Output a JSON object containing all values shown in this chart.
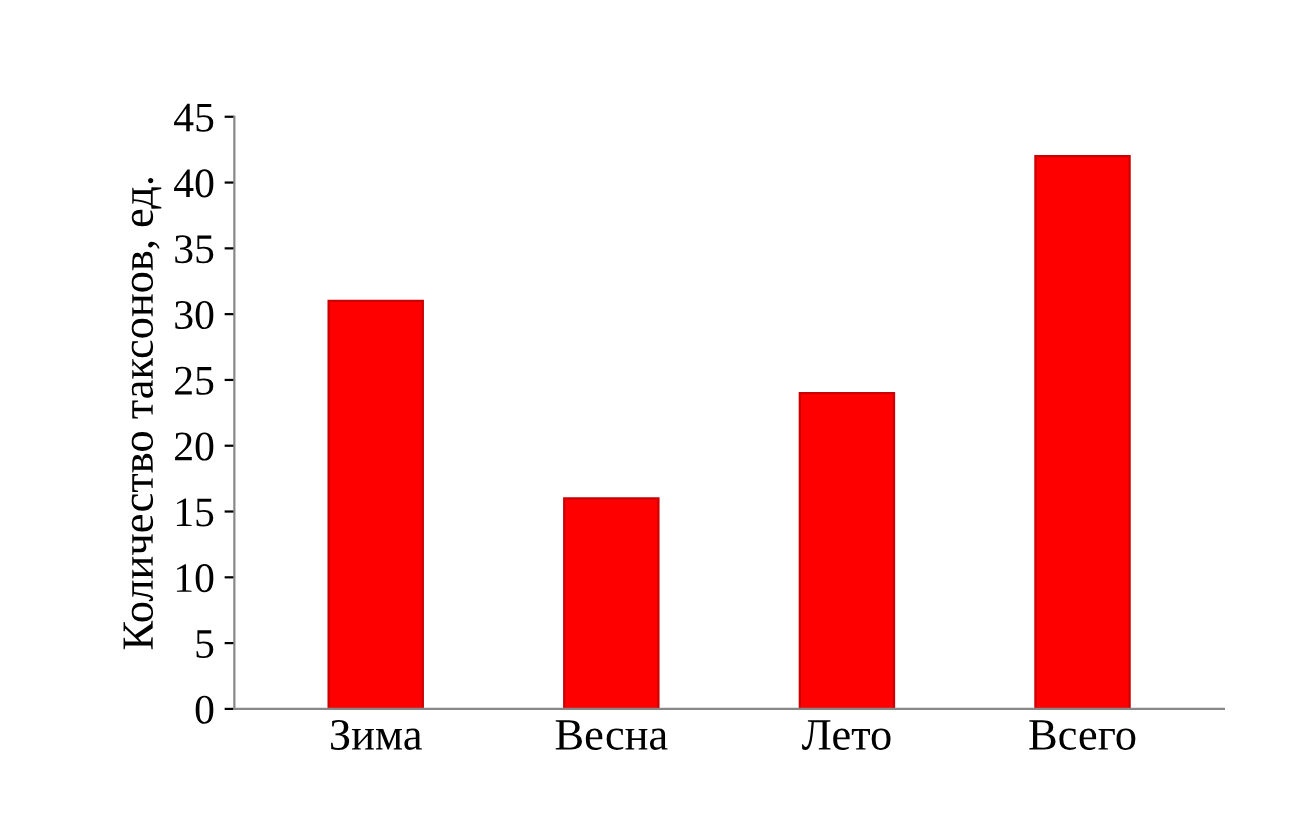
{
  "chart_data": {
    "type": "bar",
    "ylabel": "Количество таксонов, ед.",
    "categories": [
      "Зима",
      "Весна",
      "Лето",
      "Всего"
    ],
    "values": [
      31,
      16,
      24,
      42
    ],
    "color": "#ff0000",
    "ylim": [
      0,
      45
    ],
    "yticks": [
      0,
      5,
      10,
      15,
      20,
      25,
      30,
      35,
      40,
      45
    ],
    "grid": false
  }
}
